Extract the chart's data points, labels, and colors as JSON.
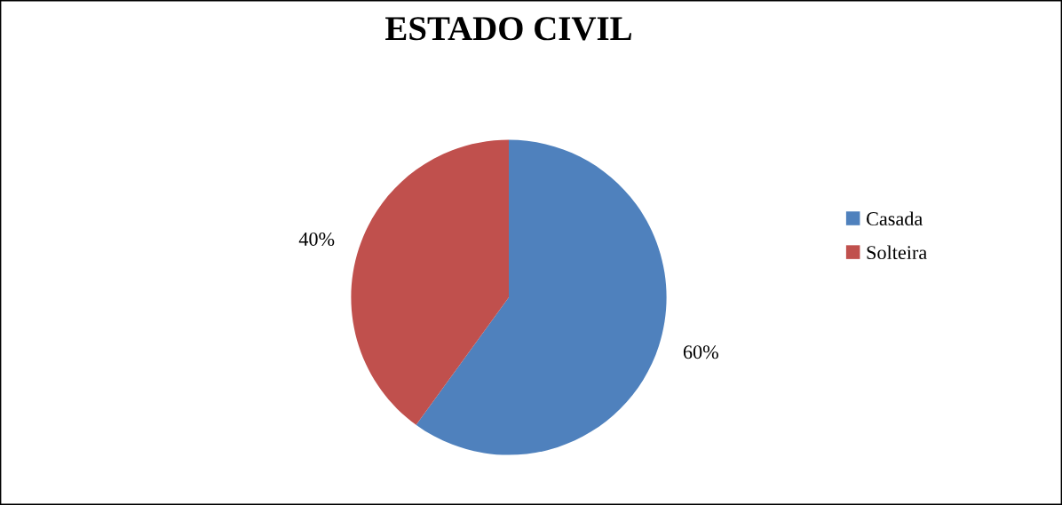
{
  "chart_data": {
    "type": "pie",
    "title": "ESTADO CIVIL",
    "categories": [
      "Casada",
      "Solteira"
    ],
    "values": [
      60,
      40
    ],
    "colors": [
      "#4f81bd",
      "#c0504d"
    ],
    "value_labels": [
      "60%",
      "40%"
    ],
    "legend": "right"
  }
}
